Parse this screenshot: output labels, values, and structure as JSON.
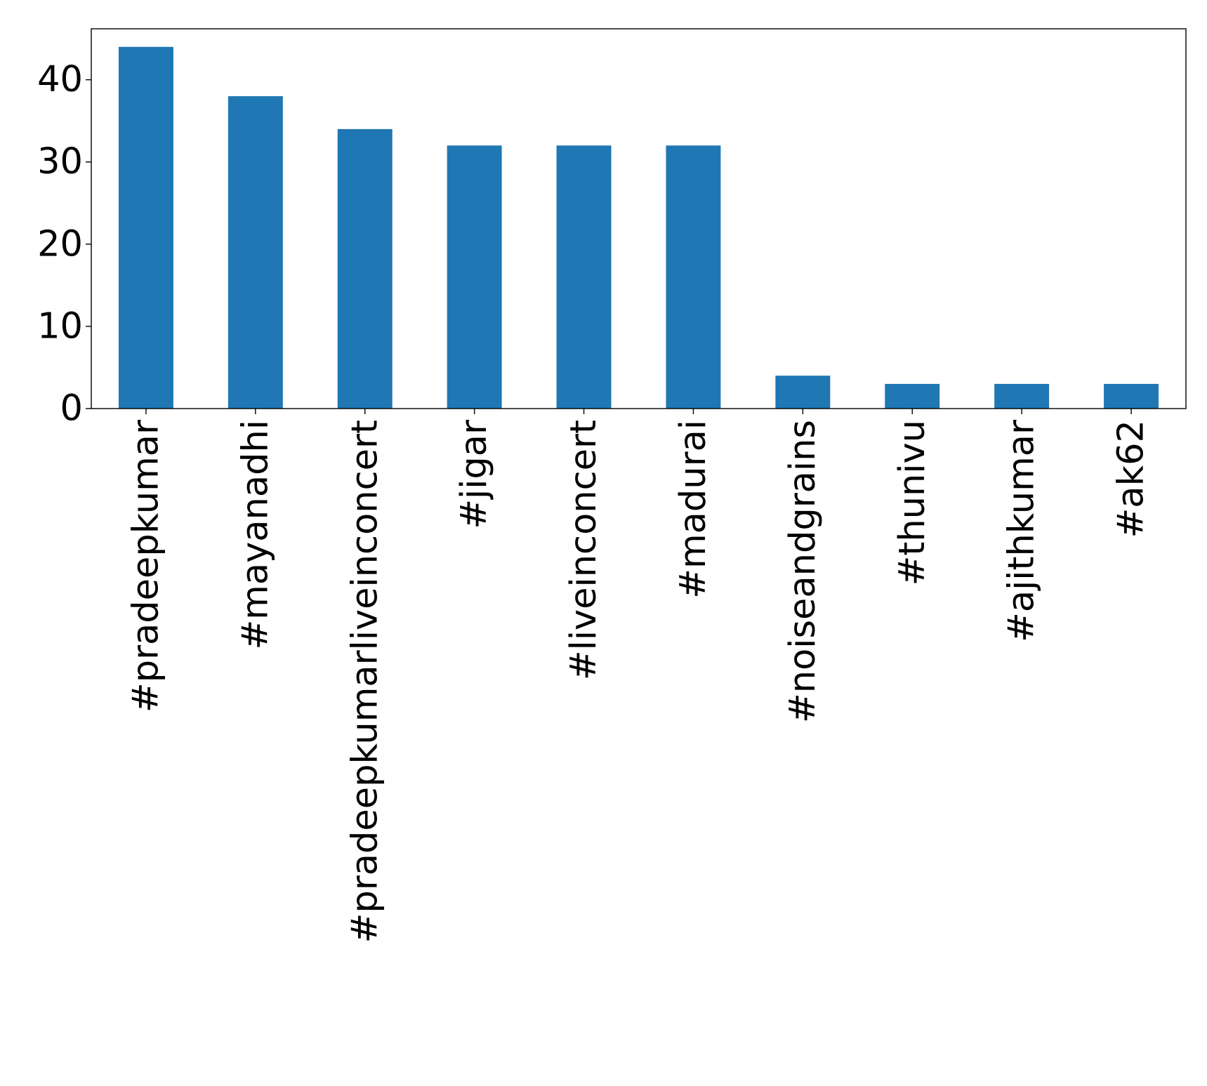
{
  "chart_data": {
    "type": "bar",
    "title": "",
    "xlabel": "",
    "ylabel": "",
    "categories": [
      "#pradeepkumar",
      "#mayanadhi",
      "#pradeepkumarliveinconcert",
      "#jigar",
      "#liveinconcert",
      "#madurai",
      "#noiseandgrains",
      "#thunivu",
      "#ajithkumar",
      "#ak62"
    ],
    "values": [
      44,
      38,
      34,
      32,
      32,
      32,
      4,
      3,
      3,
      3
    ],
    "ylim": [
      0,
      46.2
    ],
    "yticks": [
      0,
      10,
      20,
      30,
      40
    ],
    "grid": false,
    "legend": "none",
    "bar_color": "#1f77b4"
  }
}
